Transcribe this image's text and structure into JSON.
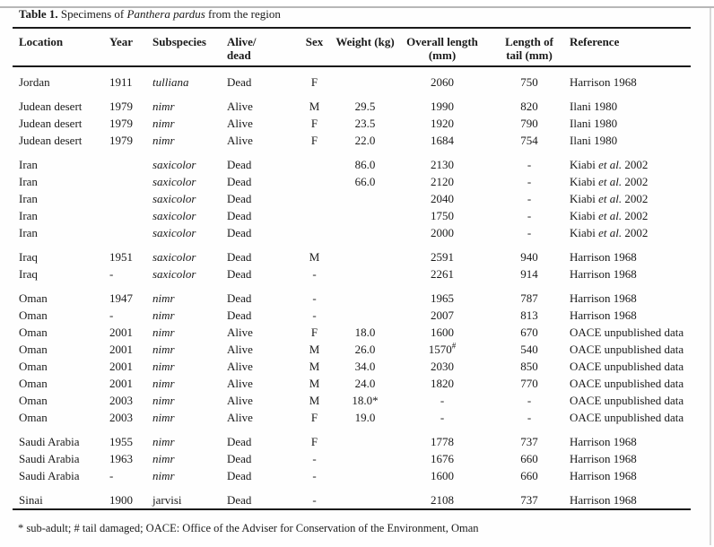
{
  "caption": {
    "label": "Table 1.",
    "before_species": " Specimens of ",
    "species": "Panthera pardus",
    "after_species": " from the region"
  },
  "table": {
    "headers": [
      {
        "key": "location",
        "lines": [
          "Location"
        ]
      },
      {
        "key": "year",
        "lines": [
          "Year"
        ]
      },
      {
        "key": "subspecies",
        "lines": [
          "Subspecies"
        ]
      },
      {
        "key": "alive",
        "lines": [
          "Alive/",
          "dead"
        ]
      },
      {
        "key": "sex",
        "lines": [
          "Sex"
        ]
      },
      {
        "key": "weight",
        "lines": [
          "Weight (kg)"
        ]
      },
      {
        "key": "overall",
        "lines": [
          "Overall length",
          "(mm)"
        ]
      },
      {
        "key": "tail",
        "lines": [
          "Length of",
          "tail (mm)"
        ]
      },
      {
        "key": "reference",
        "lines": [
          "Reference"
        ]
      }
    ],
    "groups": [
      {
        "rows": [
          {
            "location": "Jordan",
            "year": "1911",
            "subspecies": "tulliana",
            "subspecies_italic": true,
            "alive": "Dead",
            "sex": "F",
            "weight": "",
            "overall": "2060",
            "tail": "750",
            "reference": "Harrison 1968"
          }
        ]
      },
      {
        "rows": [
          {
            "location": "Judean desert",
            "year": "1979",
            "subspecies": "nimr",
            "subspecies_italic": true,
            "alive": "Alive",
            "sex": "M",
            "weight": "29.5",
            "overall": "1990",
            "tail": "820",
            "reference": "Ilani 1980"
          },
          {
            "location": "Judean desert",
            "year": "1979",
            "subspecies": "nimr",
            "subspecies_italic": true,
            "alive": "Alive",
            "sex": "F",
            "weight": "23.5",
            "overall": "1920",
            "tail": "790",
            "reference": "Ilani 1980"
          },
          {
            "location": "Judean desert",
            "year": "1979",
            "subspecies": "nimr",
            "subspecies_italic": true,
            "alive": "Alive",
            "sex": "F",
            "weight": "22.0",
            "overall": "1684",
            "tail": "754",
            "reference": "Ilani 1980"
          }
        ]
      },
      {
        "rows": [
          {
            "location": "Iran",
            "year": "",
            "subspecies": "saxicolor",
            "subspecies_italic": true,
            "alive": "Dead",
            "sex": "",
            "weight": "86.0",
            "overall": "2130",
            "tail": "-",
            "reference": "Kiabi et al. 2002"
          },
          {
            "location": "Iran",
            "year": "",
            "subspecies": "saxicolor",
            "subspecies_italic": true,
            "alive": "Dead",
            "sex": "",
            "weight": "66.0",
            "overall": "2120",
            "tail": "-",
            "reference": "Kiabi et al. 2002"
          },
          {
            "location": "Iran",
            "year": "",
            "subspecies": "saxicolor",
            "subspecies_italic": true,
            "alive": "Dead",
            "sex": "",
            "weight": "",
            "overall": "2040",
            "tail": "-",
            "reference": "Kiabi et al. 2002"
          },
          {
            "location": "Iran",
            "year": "",
            "subspecies": "saxicolor",
            "subspecies_italic": true,
            "alive": "Dead",
            "sex": "",
            "weight": "",
            "overall": "1750",
            "tail": "-",
            "reference": "Kiabi et al. 2002"
          },
          {
            "location": "Iran",
            "year": "",
            "subspecies": "saxicolor",
            "subspecies_italic": true,
            "alive": "Dead",
            "sex": "",
            "weight": "",
            "overall": "2000",
            "tail": "-",
            "reference": "Kiabi et al. 2002"
          }
        ]
      },
      {
        "rows": [
          {
            "location": "Iraq",
            "year": "1951",
            "subspecies": "saxicolor",
            "subspecies_italic": true,
            "alive": "Dead",
            "sex": "M",
            "weight": "",
            "overall": "2591",
            "tail": "940",
            "reference": "Harrison 1968"
          },
          {
            "location": "Iraq",
            "year": "-",
            "subspecies": "saxicolor",
            "subspecies_italic": true,
            "alive": "Dead",
            "sex": "-",
            "weight": "",
            "overall": "2261",
            "tail": "914",
            "reference": "Harrison 1968"
          }
        ]
      },
      {
        "rows": [
          {
            "location": "Oman",
            "year": "1947",
            "subspecies": "nimr",
            "subspecies_italic": true,
            "alive": "Dead",
            "sex": "-",
            "weight": "",
            "overall": "1965",
            "tail": "787",
            "reference": "Harrison 1968"
          },
          {
            "location": "Oman",
            "year": "-",
            "subspecies": "nimr",
            "subspecies_italic": true,
            "alive": "Dead",
            "sex": "-",
            "weight": "",
            "overall": "2007",
            "tail": "813",
            "reference": "Harrison 1968"
          },
          {
            "location": "Oman",
            "year": "2001",
            "subspecies": "nimr",
            "subspecies_italic": true,
            "alive": "Alive",
            "sex": "F",
            "weight": "18.0",
            "overall": "1600",
            "tail": "670",
            "reference": "OACE unpublished data"
          },
          {
            "location": "Oman",
            "year": "2001",
            "subspecies": "nimr",
            "subspecies_italic": true,
            "alive": "Alive",
            "sex": "M",
            "weight": "26.0",
            "overall": "1570#",
            "tail": "540",
            "reference": "OACE unpublished data"
          },
          {
            "location": "Oman",
            "year": "2001",
            "subspecies": "nimr",
            "subspecies_italic": true,
            "alive": "Alive",
            "sex": "M",
            "weight": "34.0",
            "overall": "2030",
            "tail": "850",
            "reference": "OACE unpublished data"
          },
          {
            "location": "Oman",
            "year": "2001",
            "subspecies": "nimr",
            "subspecies_italic": true,
            "alive": "Alive",
            "sex": "M",
            "weight": "24.0",
            "overall": "1820",
            "tail": "770",
            "reference": "OACE unpublished data"
          },
          {
            "location": "Oman",
            "year": "2003",
            "subspecies": "nimr",
            "subspecies_italic": true,
            "alive": "Alive",
            "sex": "M",
            "weight": "18.0*",
            "overall": "-",
            "tail": "-",
            "reference": "OACE unpublished data"
          },
          {
            "location": "Oman",
            "year": "2003",
            "subspecies": "nimr",
            "subspecies_italic": true,
            "alive": "Alive",
            "sex": "F",
            "weight": "19.0",
            "overall": "-",
            "tail": "-",
            "reference": "OACE unpublished data"
          }
        ]
      },
      {
        "rows": [
          {
            "location": "Saudi Arabia",
            "year": "1955",
            "subspecies": "nimr",
            "subspecies_italic": true,
            "alive": "Dead",
            "sex": "F",
            "weight": "",
            "overall": "1778",
            "tail": "737",
            "reference": "Harrison 1968"
          },
          {
            "location": "Saudi Arabia",
            "year": "1963",
            "subspecies": "nimr",
            "subspecies_italic": true,
            "alive": "Dead",
            "sex": "-",
            "weight": "",
            "overall": "1676",
            "tail": "660",
            "reference": "Harrison 1968"
          },
          {
            "location": "Saudi Arabia",
            "year": "-",
            "subspecies": "nimr",
            "subspecies_italic": true,
            "alive": "Dead",
            "sex": "-",
            "weight": "",
            "overall": "1600",
            "tail": "660",
            "reference": "Harrison 1968"
          }
        ]
      },
      {
        "rows": [
          {
            "location": "Sinai",
            "year": "1900",
            "subspecies": "jarvisi",
            "subspecies_italic": false,
            "alive": "Dead",
            "sex": "-",
            "weight": "",
            "overall": "2108",
            "tail": "737",
            "reference": "Harrison 1968"
          }
        ]
      }
    ]
  },
  "footnote": "* sub-adult; # tail damaged; OACE: Office of the Adviser for Conservation of the Environment, Oman",
  "colors": {
    "text": "#1a1a1a",
    "rule": "#1a1a1a",
    "background": "#fefefe"
  }
}
